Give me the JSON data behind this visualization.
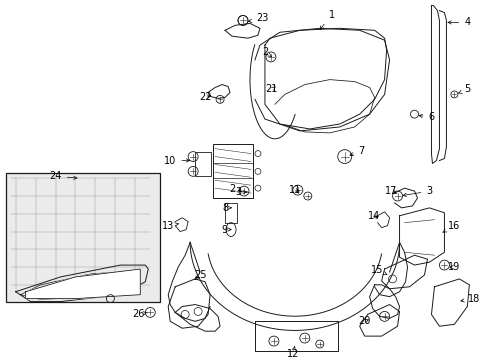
{
  "bg_color": "#ffffff",
  "line_color": "#1a1a1a",
  "text_color": "#000000",
  "label_fontsize": 7.0,
  "fig_w": 4.89,
  "fig_h": 3.6,
  "dpi": 100
}
